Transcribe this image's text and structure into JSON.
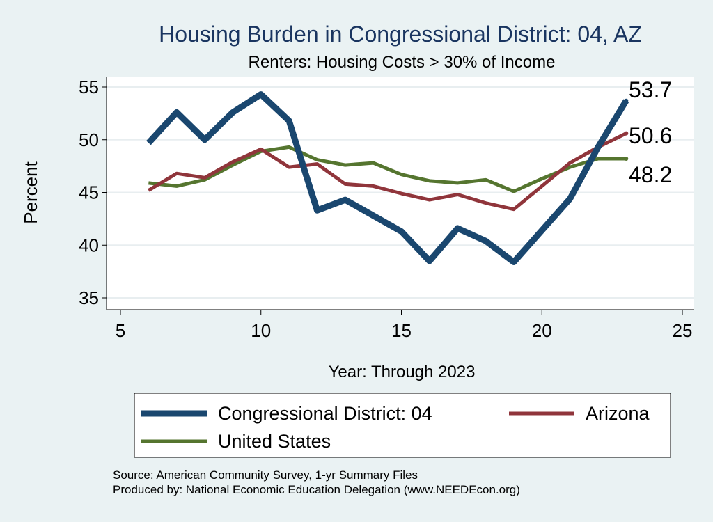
{
  "chart_data": {
    "type": "line",
    "title": "Housing Burden in Congressional District:  04, AZ",
    "subtitle": "Renters: Housing Costs > 30% of Income",
    "xlabel": "Year: Through 2023",
    "ylabel": "Percent",
    "xlim": [
      5,
      25
    ],
    "ylim": [
      35,
      55
    ],
    "xticks": [
      5,
      10,
      15,
      20,
      25
    ],
    "yticks": [
      35,
      40,
      45,
      50,
      55
    ],
    "grid": true,
    "legend_position": "bottom",
    "x": [
      6,
      7,
      8,
      9,
      10,
      11,
      12,
      13,
      14,
      15,
      16,
      17,
      18,
      19,
      20,
      21,
      22,
      23
    ],
    "series": [
      {
        "name": "Congressional District:  04",
        "color": "#1a476f",
        "values": [
          49.7,
          52.6,
          50.0,
          52.6,
          54.3,
          51.8,
          43.3,
          44.3,
          42.8,
          41.3,
          38.5,
          41.6,
          40.4,
          38.4,
          41.4,
          44.4,
          49.3,
          53.7
        ],
        "end_label": "53.7"
      },
      {
        "name": "Arizona",
        "color": "#90353b",
        "values": [
          45.2,
          46.8,
          46.4,
          47.9,
          49.1,
          47.4,
          47.7,
          45.8,
          45.6,
          44.9,
          44.3,
          44.8,
          44.0,
          43.4,
          45.6,
          47.8,
          49.3,
          50.6
        ],
        "end_label": "50.6"
      },
      {
        "name": "United States",
        "color": "#55752f",
        "values": [
          45.9,
          45.6,
          46.2,
          47.6,
          48.9,
          49.3,
          48.1,
          47.6,
          47.8,
          46.7,
          46.1,
          45.9,
          46.2,
          45.1,
          46.3,
          47.4,
          48.2,
          48.2
        ],
        "end_label": "48.2"
      }
    ],
    "source_note": "Source: American Community Survey, 1-yr Summary Files",
    "producer_note": "Produced by: National Economic Education Delegation (www.NEEDEcon.org)"
  }
}
